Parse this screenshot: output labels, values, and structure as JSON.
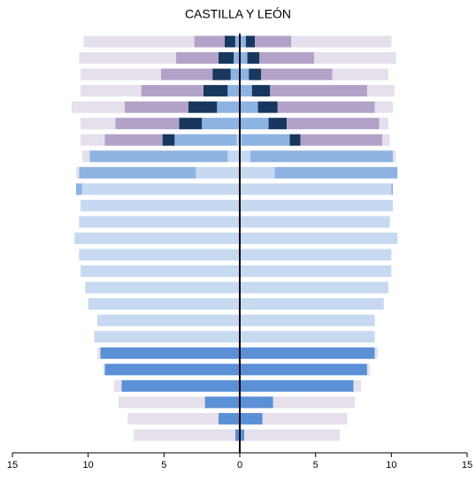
{
  "chart_data": {
    "type": "pyramid",
    "title": "CASTILLA Y LEÓN",
    "xlim": [
      -15,
      15
    ],
    "xticks": [
      {
        "value": -15,
        "label": "15"
      },
      {
        "value": -10,
        "label": "10"
      },
      {
        "value": -5,
        "label": "5"
      },
      0,
      5,
      10,
      15
    ],
    "series": [
      {
        "side": "left",
        "color": "#c6d9f1",
        "values": [
          0,
          0,
          0,
          0,
          0,
          0,
          0.2,
          0.8,
          2.9,
          10.4,
          10.5,
          10.6,
          10.9,
          10.6,
          10.5,
          10.2,
          10.0,
          9.4,
          9.6,
          0,
          0,
          0,
          0,
          0,
          0
        ]
      },
      {
        "side": "left",
        "color": "#5b8fd6",
        "values": [
          0,
          0,
          0,
          0,
          0,
          0,
          0,
          0,
          0,
          0,
          0,
          0,
          0,
          0,
          0,
          0,
          0,
          0,
          0,
          9.2,
          8.9,
          7.8,
          2.3,
          1.4,
          0.3
        ]
      },
      {
        "side": "left",
        "color": "#8db3e2",
        "values": [
          0.3,
          0.4,
          0.6,
          0.8,
          1.5,
          2.5,
          4.1,
          9.1,
          7.7,
          0.4,
          0,
          0,
          0,
          0,
          0,
          0,
          0,
          0,
          0,
          0,
          0,
          0,
          0,
          0,
          0
        ]
      },
      {
        "side": "left",
        "color": "#17375e",
        "values": [
          0.7,
          1.0,
          1.2,
          1.6,
          1.9,
          1.5,
          0.8,
          0,
          0,
          0,
          0,
          0,
          0,
          0,
          0,
          0,
          0,
          0,
          0,
          0,
          0,
          0,
          0,
          0,
          0
        ]
      },
      {
        "side": "left",
        "color": "#b3a2c7",
        "values": [
          2.0,
          2.8,
          3.4,
          4.1,
          4.2,
          4.2,
          3.8,
          0,
          0,
          0,
          0,
          0,
          0,
          0,
          0,
          0,
          0,
          0,
          0,
          0,
          0,
          0,
          0,
          0,
          0
        ]
      },
      {
        "side": "left",
        "color": "#e5e0ec",
        "values": [
          7.3,
          6.4,
          5.3,
          4.0,
          3.5,
          2.3,
          1.6,
          0.5,
          0.2,
          0,
          0,
          0,
          0,
          0,
          0,
          0,
          0,
          0,
          0,
          0.2,
          0.1,
          0.5,
          5.7,
          6.0,
          6.7
        ]
      },
      {
        "side": "right",
        "color": "#c6d9f1",
        "values": [
          0,
          0,
          0,
          0,
          0,
          0,
          0.1,
          0.7,
          2.3,
          10.0,
          10.1,
          9.9,
          10.4,
          10.0,
          10.0,
          9.8,
          9.5,
          8.9,
          8.9,
          0,
          0,
          0,
          0,
          0,
          0
        ]
      },
      {
        "side": "right",
        "color": "#5b8fd6",
        "values": [
          0,
          0,
          0,
          0,
          0,
          0,
          0,
          0,
          0,
          0,
          0,
          0,
          0,
          0,
          0,
          0,
          0,
          0,
          0,
          8.9,
          8.4,
          7.5,
          2.2,
          1.5,
          0.3
        ]
      },
      {
        "side": "right",
        "color": "#8db3e2",
        "values": [
          0.4,
          0.5,
          0.6,
          0.8,
          1.2,
          1.9,
          3.2,
          9.4,
          8.1,
          0.1,
          0,
          0,
          0,
          0,
          0,
          0,
          0,
          0,
          0,
          0,
          0,
          0,
          0,
          0,
          0
        ]
      },
      {
        "side": "right",
        "color": "#17375e",
        "values": [
          0.6,
          0.8,
          0.8,
          1.2,
          1.3,
          1.2,
          0.7,
          0,
          0,
          0,
          0,
          0,
          0,
          0,
          0,
          0,
          0,
          0,
          0,
          0,
          0,
          0,
          0,
          0,
          0
        ]
      },
      {
        "side": "right",
        "color": "#b3a2c7",
        "values": [
          2.4,
          3.6,
          4.7,
          6.4,
          6.4,
          6.1,
          5.4,
          0,
          0,
          0,
          0,
          0,
          0,
          0,
          0,
          0,
          0,
          0,
          0,
          0,
          0,
          0,
          0,
          0,
          0
        ]
      },
      {
        "side": "right",
        "color": "#e5e0ec",
        "values": [
          6.6,
          5.4,
          3.7,
          1.8,
          1.2,
          0.6,
          0.5,
          0.2,
          0,
          0,
          0,
          0,
          0,
          0,
          0,
          0,
          0,
          0,
          0,
          0.2,
          0.2,
          0.5,
          5.4,
          5.6,
          6.3
        ]
      }
    ]
  }
}
